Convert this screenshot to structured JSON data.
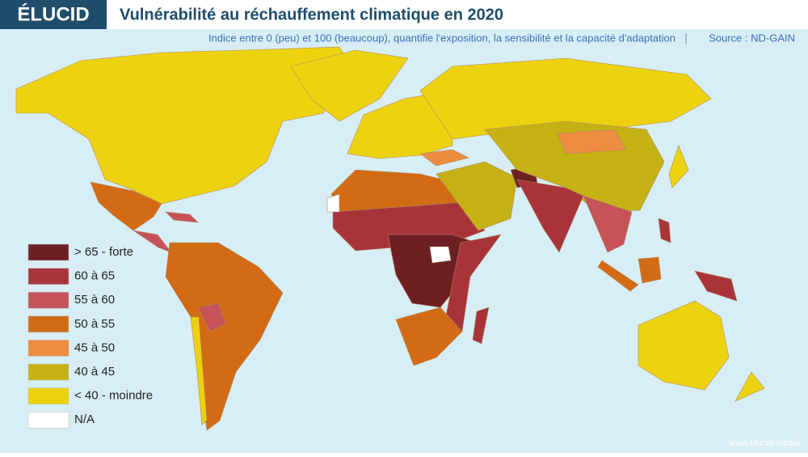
{
  "header": {
    "logo": "ÉLUCID",
    "title": "Vulnérabilité au réchauffement climatique en 2020",
    "subtitle": "Indice entre 0 (peu) et 100 (beaucoup), quantifie l'exposition, la sensibilité et la capacité d'adaptation",
    "source": "Source : ND-GAIN"
  },
  "legend": [
    {
      "label": "> 65 - forte",
      "color": "#6e1f22"
    },
    {
      "label": "60 à 65",
      "color": "#a8343a"
    },
    {
      "label": "55 à 60",
      "color": "#c75259"
    },
    {
      "label": "50 à 55",
      "color": "#d26b14"
    },
    {
      "label": "45 à 50",
      "color": "#ec8c40"
    },
    {
      "label": "40 à 45",
      "color": "#c6b114"
    },
    {
      "label": "< 40 - moindre",
      "color": "#ecd20e"
    },
    {
      "label": "N/A",
      "color": "#ffffff"
    }
  ],
  "footer": "www.elucid.media"
}
